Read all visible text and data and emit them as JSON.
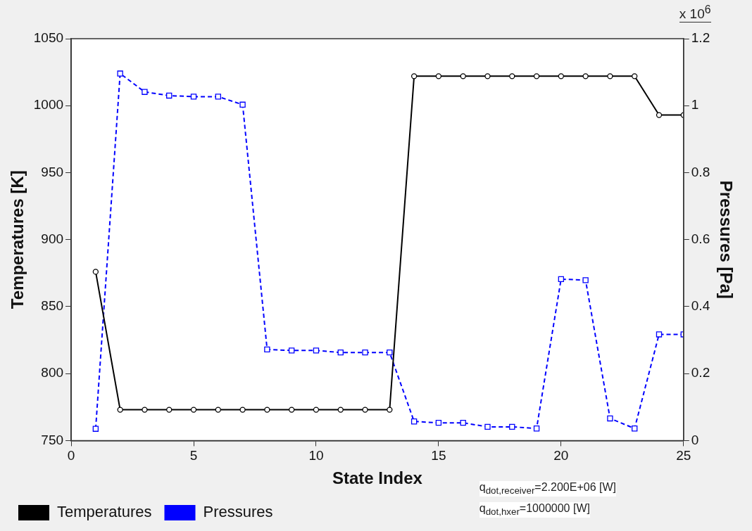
{
  "chart_data": {
    "type": "line",
    "xlabel": "State Index",
    "ylabel": "Temperatures [K]",
    "y2label": "Pressures [Pa]",
    "x": [
      1,
      2,
      3,
      4,
      5,
      6,
      7,
      8,
      9,
      10,
      11,
      12,
      13,
      14,
      15,
      16,
      17,
      18,
      19,
      20,
      21,
      22,
      23,
      24,
      25
    ],
    "series": [
      {
        "name": "Temperatures",
        "color": "#000000",
        "marker": "circle",
        "line_style": "solid",
        "values": [
          876,
          773,
          773,
          773,
          773,
          773,
          773,
          773,
          773,
          773,
          773,
          773,
          773,
          1022,
          1022,
          1022,
          1022,
          1022,
          1022,
          1022,
          1022,
          1022,
          1022,
          993,
          993
        ]
      },
      {
        "name": "Pressures",
        "color": "#0000ff",
        "marker": "square",
        "line_style": "dashed",
        "axis": "y2",
        "values": [
          0.035,
          1.096,
          1.041,
          1.03,
          1.027,
          1.027,
          1.003,
          0.272,
          0.269,
          0.269,
          0.263,
          0.263,
          0.263,
          0.057,
          0.053,
          0.053,
          0.041,
          0.041,
          0.036,
          0.482,
          0.479,
          0.066,
          0.036,
          0.317,
          0.317
        ]
      }
    ],
    "xlim": [
      0,
      25
    ],
    "xticks": [
      0,
      5,
      10,
      15,
      20,
      25
    ],
    "ylim": [
      750,
      1050
    ],
    "yticks": [
      750,
      800,
      850,
      900,
      950,
      1000,
      1050
    ],
    "y2lim": [
      0,
      1.2
    ],
    "y2ticks": [
      0,
      0.2,
      0.4,
      0.6,
      0.8,
      1,
      1.2
    ],
    "grid": false,
    "legend": "bottom left",
    "annotations": [
      "x 10$^{6}$",
      "q$_{dot,receiver}$=2.200E+06 [W]",
      "q$_{dot,hxer}$=1000000 [W]"
    ]
  }
}
